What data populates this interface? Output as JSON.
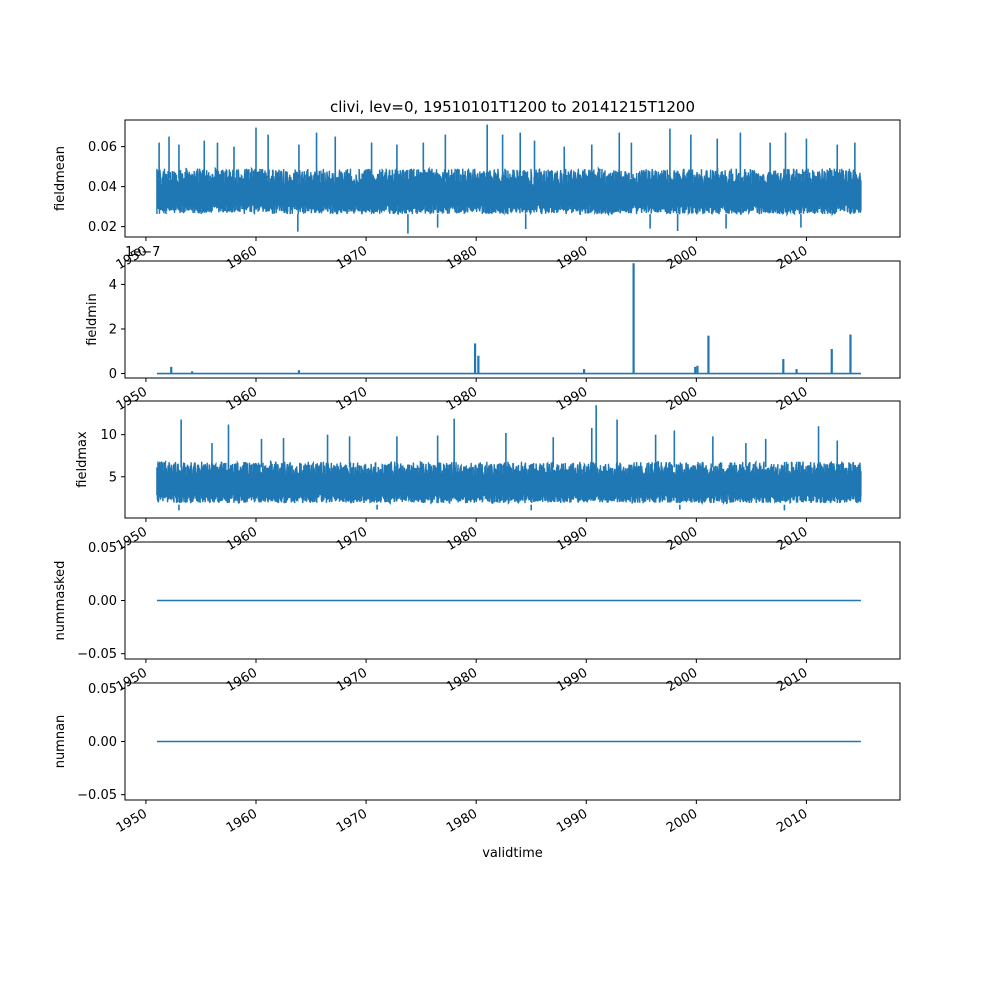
{
  "figure": {
    "title": "clivi, lev=0, 19510101T1200 to 20141215T1200"
  },
  "chart_data": [
    {
      "type": "line",
      "ylabel": "fieldmean",
      "xlim": [
        1948.1,
        2018.5
      ],
      "ylim": [
        0.0148,
        0.0733
      ],
      "yticks": [
        0.02,
        0.04,
        0.06
      ],
      "ytick_labels": [
        "0.02",
        "0.04",
        "0.06"
      ],
      "xticks": [
        1950,
        1960,
        1970,
        1980,
        1990,
        2000,
        2010
      ],
      "xtick_labels": [
        "1950",
        "1960",
        "1970",
        "1980",
        "1990",
        "2000",
        "2010"
      ],
      "x_range": [
        1951.0,
        2014.95
      ],
      "band": {
        "low": 0.025,
        "high": 0.049
      },
      "spikes": [
        {
          "x": 1951.2,
          "y": 0.062
        },
        {
          "x": 1952.1,
          "y": 0.065
        },
        {
          "x": 1953.0,
          "y": 0.061
        },
        {
          "x": 1955.3,
          "y": 0.063
        },
        {
          "x": 1956.5,
          "y": 0.062
        },
        {
          "x": 1958.0,
          "y": 0.06
        },
        {
          "x": 1960.0,
          "y": 0.0695
        },
        {
          "x": 1961.1,
          "y": 0.066
        },
        {
          "x": 1963.9,
          "y": 0.061
        },
        {
          "x": 1965.5,
          "y": 0.067
        },
        {
          "x": 1967.2,
          "y": 0.065
        },
        {
          "x": 1970.5,
          "y": 0.062
        },
        {
          "x": 1972.8,
          "y": 0.061
        },
        {
          "x": 1975.2,
          "y": 0.062
        },
        {
          "x": 1977.2,
          "y": 0.066
        },
        {
          "x": 1981.0,
          "y": 0.071
        },
        {
          "x": 1982.4,
          "y": 0.066
        },
        {
          "x": 1984.0,
          "y": 0.067
        },
        {
          "x": 1985.3,
          "y": 0.063
        },
        {
          "x": 1988.0,
          "y": 0.06
        },
        {
          "x": 1990.5,
          "y": 0.061
        },
        {
          "x": 1993.0,
          "y": 0.067
        },
        {
          "x": 1994.1,
          "y": 0.062
        },
        {
          "x": 1997.6,
          "y": 0.069
        },
        {
          "x": 1999.5,
          "y": 0.066
        },
        {
          "x": 2001.9,
          "y": 0.064
        },
        {
          "x": 2004.0,
          "y": 0.067
        },
        {
          "x": 2006.7,
          "y": 0.062
        },
        {
          "x": 2008.1,
          "y": 0.067
        },
        {
          "x": 2010.0,
          "y": 0.064
        },
        {
          "x": 2012.8,
          "y": 0.061
        },
        {
          "x": 2014.4,
          "y": 0.062
        }
      ],
      "dips": [
        {
          "x": 1963.8,
          "y": 0.0175
        },
        {
          "x": 1973.8,
          "y": 0.0165
        },
        {
          "x": 1976.5,
          "y": 0.0195
        },
        {
          "x": 1984.5,
          "y": 0.0188
        },
        {
          "x": 1995.8,
          "y": 0.019
        },
        {
          "x": 1998.3,
          "y": 0.0178
        },
        {
          "x": 2002.7,
          "y": 0.019
        },
        {
          "x": 2009.5,
          "y": 0.0195
        }
      ]
    },
    {
      "type": "line",
      "ylabel": "fieldmin",
      "offset_text": "1e−7",
      "xlim": [
        1948.1,
        2018.5
      ],
      "ylim": [
        -0.2,
        5.05
      ],
      "yticks": [
        0,
        2,
        4
      ],
      "ytick_labels": [
        "0",
        "2",
        "4"
      ],
      "xticks": [
        1950,
        1960,
        1970,
        1980,
        1990,
        2000,
        2010
      ],
      "xtick_labels": [
        "1950",
        "1960",
        "1970",
        "1980",
        "1990",
        "2000",
        "2010"
      ],
      "x_range": [
        1951.0,
        2014.95
      ],
      "baseline": 0.0,
      "spikes": [
        {
          "x": 1952.3,
          "y": 0.3
        },
        {
          "x": 1954.2,
          "y": 0.1
        },
        {
          "x": 1963.9,
          "y": 0.15
        },
        {
          "x": 1979.9,
          "y": 1.35
        },
        {
          "x": 1980.2,
          "y": 0.8
        },
        {
          "x": 1989.8,
          "y": 0.2
        },
        {
          "x": 1994.3,
          "y": 4.95
        },
        {
          "x": 1999.9,
          "y": 0.3
        },
        {
          "x": 2000.1,
          "y": 0.35
        },
        {
          "x": 2001.1,
          "y": 1.7
        },
        {
          "x": 2007.9,
          "y": 0.65
        },
        {
          "x": 2009.1,
          "y": 0.2
        },
        {
          "x": 2012.3,
          "y": 1.1
        },
        {
          "x": 2014.0,
          "y": 1.75
        }
      ]
    },
    {
      "type": "line",
      "ylabel": "fieldmax",
      "xlim": [
        1948.1,
        2018.5
      ],
      "ylim": [
        0.1,
        14.0
      ],
      "yticks": [
        5,
        10
      ],
      "ytick_labels": [
        "5",
        "10"
      ],
      "xticks": [
        1950,
        1960,
        1970,
        1980,
        1990,
        2000,
        2010
      ],
      "xtick_labels": [
        "1950",
        "1960",
        "1970",
        "1980",
        "1990",
        "2000",
        "2010"
      ],
      "x_range": [
        1951.0,
        2014.95
      ],
      "band": {
        "low": 1.6,
        "high": 6.8
      },
      "spikes": [
        {
          "x": 1953.2,
          "y": 11.8
        },
        {
          "x": 1956.0,
          "y": 9.0
        },
        {
          "x": 1957.5,
          "y": 11.2
        },
        {
          "x": 1960.5,
          "y": 9.5
        },
        {
          "x": 1962.5,
          "y": 9.6
        },
        {
          "x": 1966.5,
          "y": 10.0
        },
        {
          "x": 1968.5,
          "y": 9.8
        },
        {
          "x": 1972.8,
          "y": 9.8
        },
        {
          "x": 1976.5,
          "y": 9.9
        },
        {
          "x": 1978.0,
          "y": 11.9
        },
        {
          "x": 1982.7,
          "y": 10.2
        },
        {
          "x": 1987.0,
          "y": 9.7
        },
        {
          "x": 1990.5,
          "y": 10.8
        },
        {
          "x": 1990.9,
          "y": 13.5
        },
        {
          "x": 1992.8,
          "y": 11.8
        },
        {
          "x": 1996.3,
          "y": 10.0
        },
        {
          "x": 1998.0,
          "y": 10.5
        },
        {
          "x": 2001.5,
          "y": 9.8
        },
        {
          "x": 2004.5,
          "y": 9.0
        },
        {
          "x": 2006.3,
          "y": 9.5
        },
        {
          "x": 2011.1,
          "y": 11.0
        },
        {
          "x": 2012.8,
          "y": 9.3
        }
      ],
      "dips": [
        {
          "x": 1953.0,
          "y": 1.0
        },
        {
          "x": 1971.0,
          "y": 1.1
        },
        {
          "x": 1985.0,
          "y": 1.0
        },
        {
          "x": 1998.5,
          "y": 1.1
        },
        {
          "x": 2008.0,
          "y": 1.0
        }
      ]
    },
    {
      "type": "line",
      "ylabel": "nummasked",
      "xlim": [
        1948.1,
        2018.5
      ],
      "ylim": [
        -0.055,
        0.055
      ],
      "yticks": [
        -0.05,
        0.0,
        0.05
      ],
      "ytick_labels": [
        "−0.05",
        "0.00",
        "0.05"
      ],
      "xticks": [
        1950,
        1960,
        1970,
        1980,
        1990,
        2000,
        2010
      ],
      "xtick_labels": [
        "1950",
        "1960",
        "1970",
        "1980",
        "1990",
        "2000",
        "2010"
      ],
      "x_range": [
        1951.0,
        2014.95
      ],
      "baseline": 0.0
    },
    {
      "type": "line",
      "ylabel": "numnan",
      "xlabel": "validtime",
      "xlim": [
        1948.1,
        2018.5
      ],
      "ylim": [
        -0.055,
        0.055
      ],
      "yticks": [
        -0.05,
        0.0,
        0.05
      ],
      "ytick_labels": [
        "−0.05",
        "0.00",
        "0.05"
      ],
      "xticks": [
        1950,
        1960,
        1970,
        1980,
        1990,
        2000,
        2010
      ],
      "xtick_labels": [
        "1950",
        "1960",
        "1970",
        "1980",
        "1990",
        "2000",
        "2010"
      ],
      "x_range": [
        1951.0,
        2014.95
      ],
      "baseline": 0.0
    }
  ],
  "colors": {
    "series": "#1f77b4",
    "axes": "#000000",
    "background": "#ffffff"
  }
}
